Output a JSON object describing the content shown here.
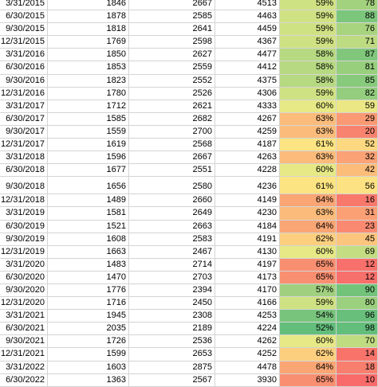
{
  "rows": [
    {
      "date": "3/31/2015",
      "a": "1846",
      "b": "2667",
      "c": "4513",
      "pct": "59%",
      "pct_color": "#cfe283",
      "score": "78",
      "score_color": "#a3d27e"
    },
    {
      "date": "6/30/2015",
      "a": "1878",
      "b": "2585",
      "c": "4463",
      "pct": "59%",
      "pct_color": "#cfe283",
      "score": "88",
      "score_color": "#7cc67c"
    },
    {
      "date": "9/30/2015",
      "a": "1818",
      "b": "2641",
      "c": "4459",
      "pct": "59%",
      "pct_color": "#cfe283",
      "score": "76",
      "score_color": "#a9d47f"
    },
    {
      "date": "12/31/2015",
      "a": "1769",
      "b": "2598",
      "c": "4367",
      "pct": "59%",
      "pct_color": "#cfe283",
      "score": "71",
      "score_color": "#bddb81"
    },
    {
      "date": "3/31/2016",
      "a": "1850",
      "b": "2627",
      "c": "4477",
      "pct": "58%",
      "pct_color": "#b6d981",
      "score": "87",
      "score_color": "#80c77c"
    },
    {
      "date": "6/30/2016",
      "a": "1853",
      "b": "2559",
      "c": "4412",
      "pct": "58%",
      "pct_color": "#b6d981",
      "score": "81",
      "score_color": "#97cf7d"
    },
    {
      "date": "9/30/2016",
      "a": "1823",
      "b": "2552",
      "c": "4375",
      "pct": "58%",
      "pct_color": "#b6d981",
      "score": "85",
      "score_color": "#88ca7c"
    },
    {
      "date": "12/31/2016",
      "a": "1780",
      "b": "2526",
      "c": "4306",
      "pct": "59%",
      "pct_color": "#cfe283",
      "score": "82",
      "score_color": "#93cd7d"
    },
    {
      "date": "3/31/2017",
      "a": "1712",
      "b": "2621",
      "c": "4333",
      "pct": "60%",
      "pct_color": "#e6e985",
      "score": "59",
      "score_color": "#ebe784"
    },
    {
      "date": "6/30/2017",
      "a": "1585",
      "b": "2682",
      "c": "4267",
      "pct": "63%",
      "pct_color": "#fbbc7b",
      "score": "29",
      "score_color": "#fa9a74"
    },
    {
      "date": "9/30/2017",
      "a": "1559",
      "b": "2700",
      "c": "4259",
      "pct": "63%",
      "pct_color": "#fbbc7b",
      "score": "20",
      "score_color": "#f8836f"
    },
    {
      "date": "12/31/2017",
      "a": "1619",
      "b": "2568",
      "c": "4187",
      "pct": "61%",
      "pct_color": "#fce482",
      "score": "52",
      "score_color": "#fcd880"
    },
    {
      "date": "3/31/2018",
      "a": "1596",
      "b": "2667",
      "c": "4263",
      "pct": "63%",
      "pct_color": "#fbbc7b",
      "score": "32",
      "score_color": "#fba276"
    },
    {
      "date": "6/30/2018",
      "a": "1677",
      "b": "2551",
      "c": "4228",
      "pct": "60%",
      "pct_color": "#e6e985",
      "score": "42",
      "score_color": "#fcbd7b"
    },
    {
      "date": "9/30/2018",
      "a": "1656",
      "b": "2580",
      "c": "4236",
      "pct": "61%",
      "pct_color": "#fce482",
      "score": "56",
      "score_color": "#fde283",
      "tall": true
    },
    {
      "date": "12/31/2018",
      "a": "1489",
      "b": "2660",
      "c": "4149",
      "pct": "64%",
      "pct_color": "#f9a574",
      "score": "16",
      "score_color": "#f8796c"
    },
    {
      "date": "3/31/2019",
      "a": "1581",
      "b": "2649",
      "c": "4230",
      "pct": "63%",
      "pct_color": "#fbbc7b",
      "score": "31",
      "score_color": "#fb9f75"
    },
    {
      "date": "6/30/2019",
      "a": "1521",
      "b": "2663",
      "c": "4184",
      "pct": "64%",
      "pct_color": "#f9a574",
      "score": "23",
      "score_color": "#f98a71"
    },
    {
      "date": "9/30/2019",
      "a": "1608",
      "b": "2583",
      "c": "4191",
      "pct": "62%",
      "pct_color": "#fccf7f",
      "score": "45",
      "score_color": "#fcc57d"
    },
    {
      "date": "12/31/2019",
      "a": "1663",
      "b": "2467",
      "c": "4130",
      "pct": "60%",
      "pct_color": "#e6e985",
      "score": "69",
      "score_color": "#c4dd82"
    },
    {
      "date": "3/31/2020",
      "a": "1483",
      "b": "2714",
      "c": "4197",
      "pct": "65%",
      "pct_color": "#f88f70",
      "score": "12",
      "score_color": "#f8706b"
    },
    {
      "date": "6/30/2020",
      "a": "1470",
      "b": "2703",
      "c": "4173",
      "pct": "65%",
      "pct_color": "#f88f70",
      "score": "12",
      "score_color": "#f8706b"
    },
    {
      "date": "9/30/2020",
      "a": "1776",
      "b": "2394",
      "c": "4170",
      "pct": "57%",
      "pct_color": "#a0d07f",
      "score": "90",
      "score_color": "#73c37b"
    },
    {
      "date": "12/31/2020",
      "a": "1716",
      "b": "2450",
      "c": "4166",
      "pct": "59%",
      "pct_color": "#cfe283",
      "score": "80",
      "score_color": "#9bd07e"
    },
    {
      "date": "3/31/2021",
      "a": "1945",
      "b": "2308",
      "c": "4253",
      "pct": "54%",
      "pct_color": "#79c47d",
      "score": "96",
      "score_color": "#68bf7b"
    },
    {
      "date": "6/30/2021",
      "a": "2035",
      "b": "2189",
      "c": "4224",
      "pct": "52%",
      "pct_color": "#63be7b",
      "score": "98",
      "score_color": "#63be7b"
    },
    {
      "date": "9/30/2021",
      "a": "1726",
      "b": "2536",
      "c": "4262",
      "pct": "60%",
      "pct_color": "#e6e985",
      "score": "70",
      "score_color": "#c0dc81"
    },
    {
      "date": "12/31/2021",
      "a": "1599",
      "b": "2653",
      "c": "4252",
      "pct": "62%",
      "pct_color": "#fccf7f",
      "score": "14",
      "score_color": "#f8746b"
    },
    {
      "date": "3/31/2022",
      "a": "1603",
      "b": "2875",
      "c": "4478",
      "pct": "64%",
      "pct_color": "#f9a574",
      "score": "18",
      "score_color": "#f87e6e"
    },
    {
      "date": "6/30/2022",
      "a": "1363",
      "b": "2567",
      "c": "3930",
      "pct": "65%",
      "pct_color": "#f88f70",
      "score": "10",
      "score_color": "#f86b6a"
    }
  ]
}
